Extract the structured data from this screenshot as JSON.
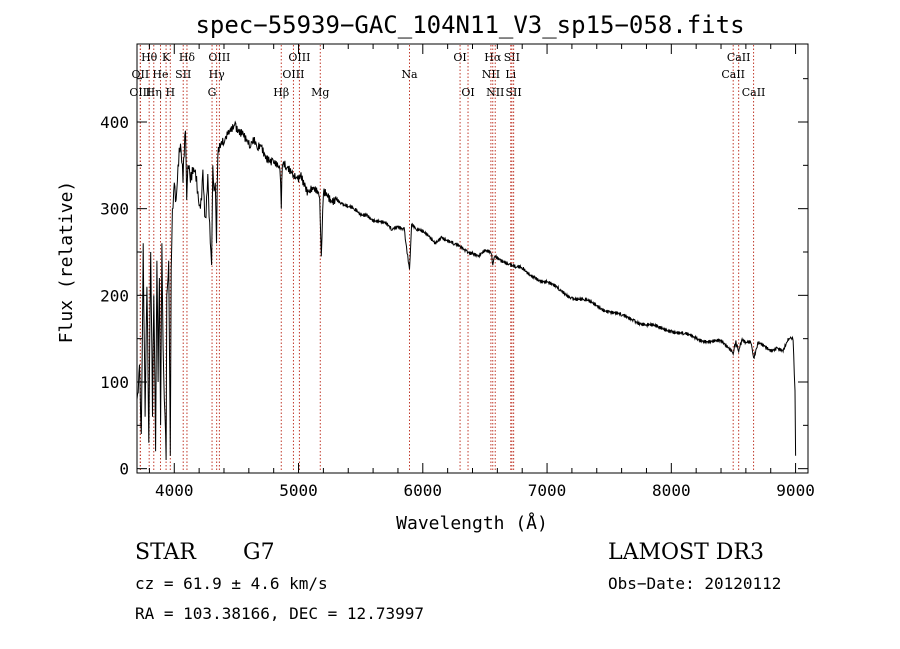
{
  "chart_data": {
    "type": "line",
    "title": "spec−55939−GAC_104N11_V3_sp15−058.fits",
    "xlabel": "Wavelength (Å)",
    "ylabel": "Flux (relative)",
    "xlim": [
      3700,
      9100
    ],
    "ylim": [
      -5,
      490
    ],
    "xticks": [
      4000,
      5000,
      6000,
      7000,
      8000,
      9000
    ],
    "xtick_labels": [
      "4000",
      "5000",
      "6000",
      "7000",
      "8000",
      "9000"
    ],
    "yticks": [
      0,
      100,
      200,
      300,
      400
    ],
    "ytick_labels": [
      "0",
      "100",
      "200",
      "300",
      "400"
    ],
    "spectrum": {
      "name": "flux",
      "x": [
        3700,
        3720,
        3735,
        3750,
        3765,
        3780,
        3795,
        3810,
        3825,
        3835,
        3850,
        3860,
        3870,
        3880,
        3890,
        3900,
        3910,
        3920,
        3930,
        3934,
        3940,
        3955,
        3965,
        3968,
        3975,
        3985,
        4000,
        4015,
        4030,
        4050,
        4070,
        4090,
        4100,
        4110,
        4130,
        4150,
        4170,
        4190,
        4210,
        4230,
        4250,
        4270,
        4290,
        4300,
        4310,
        4320,
        4330,
        4340,
        4350,
        4370,
        4400,
        4430,
        4460,
        4490,
        4520,
        4550,
        4580,
        4610,
        4640,
        4670,
        4700,
        4730,
        4760,
        4790,
        4820,
        4850,
        4861,
        4870,
        4900,
        4930,
        4960,
        4990,
        5020,
        5050,
        5080,
        5110,
        5140,
        5170,
        5183,
        5200,
        5230,
        5260,
        5300,
        5350,
        5400,
        5450,
        5500,
        5550,
        5600,
        5650,
        5700,
        5750,
        5800,
        5850,
        5893,
        5910,
        5950,
        6000,
        6050,
        6100,
        6150,
        6200,
        6250,
        6300,
        6350,
        6400,
        6450,
        6500,
        6550,
        6563,
        6580,
        6620,
        6660,
        6700,
        6750,
        6800,
        6850,
        6900,
        6950,
        7000,
        7100,
        7200,
        7300,
        7400,
        7500,
        7600,
        7700,
        7800,
        7900,
        8000,
        8100,
        8200,
        8300,
        8400,
        8498,
        8520,
        8542,
        8570,
        8600,
        8640,
        8662,
        8700,
        8750,
        8800,
        8850,
        8900,
        8950,
        8980,
        8995,
        9000
      ],
      "values": [
        80,
        120,
        40,
        260,
        60,
        210,
        30,
        250,
        60,
        200,
        20,
        240,
        100,
        220,
        50,
        260,
        140,
        80,
        40,
        10,
        200,
        240,
        80,
        15,
        230,
        300,
        330,
        310,
        350,
        375,
        330,
        390,
        310,
        350,
        330,
        340,
        345,
        320,
        300,
        345,
        290,
        340,
        260,
        235,
        350,
        320,
        330,
        260,
        360,
        370,
        375,
        385,
        395,
        400,
        392,
        390,
        378,
        370,
        375,
        368,
        372,
        362,
        360,
        358,
        355,
        345,
        300,
        350,
        345,
        340,
        338,
        335,
        342,
        330,
        320,
        325,
        318,
        312,
        245,
        316,
        315,
        310,
        314,
        306,
        302,
        298,
        292,
        294,
        288,
        285,
        282,
        275,
        280,
        278,
        230,
        282,
        275,
        272,
        268,
        262,
        268,
        262,
        258,
        256,
        252,
        250,
        246,
        250,
        248,
        235,
        245,
        242,
        240,
        236,
        232,
        230,
        224,
        222,
        218,
        215,
        206,
        198,
        194,
        188,
        182,
        176,
        172,
        166,
        162,
        160,
        155,
        150,
        148,
        146,
        132,
        148,
        135,
        150,
        146,
        145,
        128,
        144,
        142,
        138,
        140,
        135,
        150,
        148,
        90,
        15
      ]
    },
    "lines": [
      {
        "label": "Hθ",
        "x": 3798,
        "row": 0
      },
      {
        "label": "OII",
        "x": 3727,
        "row": 1
      },
      {
        "label": "OIII",
        "x": 3727,
        "row": 2
      },
      {
        "label": "He",
        "x": 3889,
        "row": 1
      },
      {
        "label": "Hη",
        "x": 3835,
        "row": 2
      },
      {
        "label": "K",
        "x": 3934,
        "row": 0
      },
      {
        "label": "SII",
        "x": 4072,
        "row": 1
      },
      {
        "label": "H",
        "x": 3968,
        "row": 2
      },
      {
        "label": "Hδ",
        "x": 4102,
        "row": 0
      },
      {
        "label": "OIII",
        "x": 4363,
        "row": 0
      },
      {
        "label": "Hγ",
        "x": 4341,
        "row": 1
      },
      {
        "label": "G",
        "x": 4304,
        "row": 2
      },
      {
        "label": "Hβ",
        "x": 4861,
        "row": 2
      },
      {
        "label": "OIII",
        "x": 5007,
        "row": 0
      },
      {
        "label": "OIII",
        "x": 4959,
        "row": 1
      },
      {
        "label": "Mg",
        "x": 5175,
        "row": 2
      },
      {
        "label": "Na",
        "x": 5893,
        "row": 1
      },
      {
        "label": "OI",
        "x": 6300,
        "row": 0
      },
      {
        "label": "OI",
        "x": 6364,
        "row": 2
      },
      {
        "label": "Hα",
        "x": 6563,
        "row": 0
      },
      {
        "label": "NII",
        "x": 6548,
        "row": 1
      },
      {
        "label": "NII",
        "x": 6583,
        "row": 2
      },
      {
        "label": "SII",
        "x": 6717,
        "row": 0
      },
      {
        "label": "Li",
        "x": 6708,
        "row": 1
      },
      {
        "label": "SII",
        "x": 6731,
        "row": 2
      },
      {
        "label": "CaII",
        "x": 8542,
        "row": 0
      },
      {
        "label": "CaII",
        "x": 8498,
        "row": 1
      },
      {
        "label": "CaII",
        "x": 8662,
        "row": 2
      }
    ]
  },
  "info": {
    "object_class": "STAR",
    "subclass": "G7",
    "survey": "LAMOST DR3",
    "redshift_text": "cz = 61.9 ± 4.6 km/s",
    "obs_date_text": "Obs−Date: 20120112",
    "coords_text": "RA = 103.38166, DEC =  12.73997"
  },
  "colors": {
    "spectrum": "#000000",
    "line_markers": "#c0392b"
  }
}
